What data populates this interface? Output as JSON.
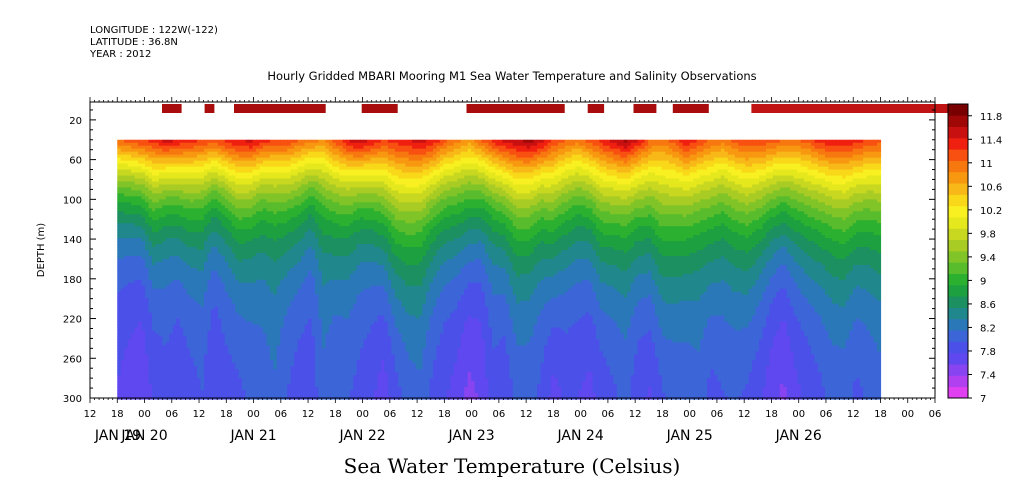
{
  "header": {
    "longitude": "LONGITUDE : 122W(-122)",
    "latitude": "LATITUDE : 36.8N",
    "year": "YEAR : 2012"
  },
  "chart_data": {
    "type": "heatmap",
    "title": "Hourly Gridded MBARI Mooring M1 Sea Water Temperature and Salinity Observations",
    "xlabel": "Sea Water Temperature (Celsius)",
    "ylabel": "DEPTH (m)",
    "x_hour_ticks": [
      "12",
      "18",
      "00",
      "06",
      "12",
      "18",
      "00",
      "06",
      "12",
      "18",
      "00",
      "06",
      "12",
      "18",
      "00",
      "06",
      "12",
      "18",
      "00",
      "06",
      "12",
      "18",
      "00",
      "06",
      "12",
      "18",
      "00",
      "06",
      "12",
      "18",
      "00",
      "06"
    ],
    "x_day_labels": [
      "JAN 19",
      "JAN 20",
      "JAN 21",
      "JAN 22",
      "JAN 23",
      "JAN 24",
      "JAN 25",
      "JAN 26"
    ],
    "y_ticks": [
      20,
      60,
      100,
      140,
      180,
      220,
      260,
      300
    ],
    "ylim": [
      300,
      2
    ],
    "y_inverted": true,
    "data_start_hour": 18,
    "data_end_hour": 186,
    "data_top_depth": 40,
    "colorbar": {
      "levels": [
        7,
        7.2,
        7.4,
        7.6,
        7.8,
        8,
        8.2,
        8.4,
        8.6,
        8.8,
        9,
        9.2,
        9.4,
        9.6,
        9.8,
        10,
        10.2,
        10.4,
        10.6,
        10.8,
        11,
        11.2,
        11.4,
        11.6,
        11.8,
        12
      ],
      "labels": [
        "7",
        "7.4",
        "7.8",
        "8.2",
        "8.6",
        "9",
        "9.4",
        "9.8",
        "10.2",
        "10.6",
        "11",
        "11.4",
        "11.8"
      ],
      "colors": [
        "#e040f0",
        "#b040f0",
        "#8844f0",
        "#6048f0",
        "#4a50e8",
        "#3c66d8",
        "#2a78b8",
        "#20888c",
        "#1c9060",
        "#1ca040",
        "#2cb030",
        "#58bc2c",
        "#80c428",
        "#a8cc24",
        "#c8d820",
        "#e4e81c",
        "#f8f020",
        "#f8d818",
        "#f8b818",
        "#f89810",
        "#f87810",
        "#f85010",
        "#f02010",
        "#c81010",
        "#a00808",
        "#780000"
      ],
      "position": "right"
    },
    "surface_temp": [
      11.2,
      11.3,
      11.4,
      11.5,
      11.7,
      11.6,
      11.5,
      11.4,
      11.3,
      11.5,
      11.6,
      11.7,
      11.5,
      11.4,
      11.4,
      11.2,
      11.1,
      11.0,
      11.3,
      11.6,
      11.8,
      11.6,
      11.4,
      11.5,
      11.6,
      11.7,
      11.6,
      11.3,
      11.1,
      10.9,
      11.2,
      11.5,
      11.7,
      11.8,
      11.9,
      11.7,
      11.4,
      11.2,
      11.1,
      11.3,
      11.5,
      11.7,
      11.9,
      11.6,
      11.2,
      11.1,
      11.3,
      11.6,
      11.4,
      11.2,
      11.1,
      11.3,
      11.4,
      11.4,
      11.3,
      11.2,
      11.2,
      11.3,
      11.5,
      11.6,
      11.6,
      11.5,
      11.4,
      11.3
    ],
    "thermocline_depth": [
      70,
      72,
      75,
      85,
      70,
      75,
      80,
      78,
      72,
      76,
      90,
      80,
      72,
      75,
      80,
      82,
      70,
      78,
      85,
      80,
      72,
      80,
      100,
      112,
      105,
      95,
      88,
      86,
      92,
      98,
      82,
      78,
      84,
      92,
      88,
      85,
      110,
      95,
      88,
      90,
      100,
      92,
      86,
      90,
      105,
      120,
      105,
      95,
      90,
      100,
      92,
      96,
      104,
      98,
      95,
      92,
      96,
      98,
      94,
      96,
      100,
      95,
      92,
      95
    ],
    "deep_temp": [
      7.4,
      7.3,
      7.2,
      7.4,
      7.5,
      7.4,
      7.5,
      7.6,
      7.4,
      7.5,
      7.5,
      7.6,
      7.7,
      7.8,
      7.6,
      7.5,
      7.5,
      7.8,
      7.6,
      7.6,
      7.5,
      7.4,
      7.2,
      7.4,
      7.6,
      7.7,
      7.5,
      7.4,
      7.3,
      7.1,
      7.2,
      7.5,
      7.4,
      7.6,
      7.6,
      7.5,
      7.2,
      7.4,
      7.4,
      7.3,
      7.4,
      7.5,
      7.6,
      7.4,
      7.3,
      7.5,
      7.6,
      7.6,
      7.7,
      7.5,
      7.6,
      7.6,
      7.5,
      7.4,
      7.2,
      7.1,
      7.3,
      7.4,
      7.5,
      7.6,
      7.6,
      7.5,
      7.6,
      7.7
    ],
    "top_flag_hours": [
      [
        18,
        24
      ],
      [
        31,
        34
      ],
      [
        40,
        68
      ],
      [
        79,
        90
      ],
      [
        111,
        141
      ],
      [
        148,
        153
      ],
      [
        162,
        169
      ],
      [
        174,
        185
      ]
    ],
    "top_flag_hours_b": [
      [
        198,
        258
      ]
    ]
  }
}
